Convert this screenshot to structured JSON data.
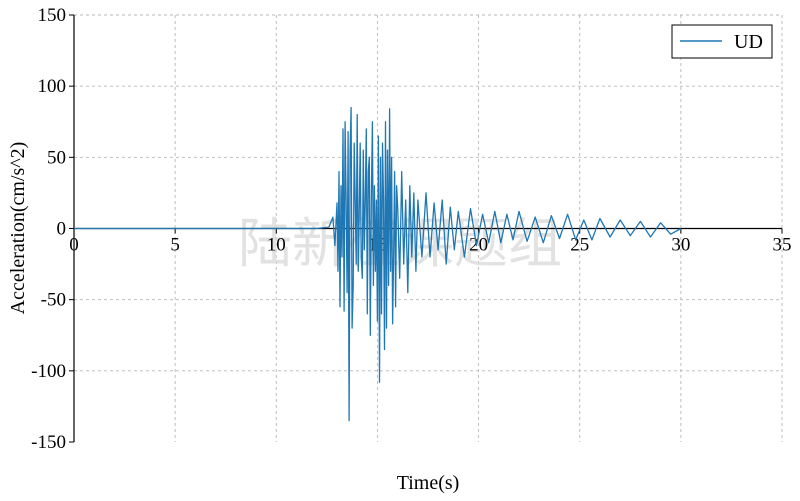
{
  "chart_data": {
    "type": "line",
    "title": "",
    "xlabel": "Time(s)",
    "ylabel": "Acceleration(cm/s^2)",
    "xlim": [
      0,
      35
    ],
    "ylim": [
      -150,
      150
    ],
    "xticks": [
      0,
      5,
      10,
      15,
      20,
      25,
      30,
      35
    ],
    "yticks": [
      150,
      100,
      50,
      0,
      -50,
      -100,
      -150
    ],
    "grid": true,
    "legend_position": "top-right",
    "watermark": "陆新征课题组",
    "series": [
      {
        "name": "UD",
        "color": "#1f77b4",
        "description": "seismic acceleration record, flat near zero until ~12.8 s, strong motion 12.8-16 s, decaying coda to 30 s",
        "x": [
          0,
          2,
          4,
          6,
          8,
          10,
          12,
          12.6,
          12.8,
          12.9,
          13.0,
          13.05,
          13.1,
          13.15,
          13.2,
          13.25,
          13.3,
          13.35,
          13.4,
          13.45,
          13.5,
          13.55,
          13.6,
          13.65,
          13.7,
          13.75,
          13.8,
          13.85,
          13.9,
          13.95,
          14.0,
          14.05,
          14.1,
          14.15,
          14.2,
          14.25,
          14.3,
          14.35,
          14.4,
          14.45,
          14.5,
          14.55,
          14.6,
          14.65,
          14.7,
          14.75,
          14.8,
          14.85,
          14.9,
          14.95,
          15.0,
          15.05,
          15.1,
          15.15,
          15.2,
          15.25,
          15.3,
          15.35,
          15.4,
          15.45,
          15.5,
          15.55,
          15.6,
          15.65,
          15.7,
          15.75,
          15.8,
          15.85,
          15.9,
          15.95,
          16.0,
          16.1,
          16.2,
          16.3,
          16.4,
          16.5,
          16.6,
          16.7,
          16.8,
          16.9,
          17.0,
          17.2,
          17.4,
          17.6,
          17.8,
          18.0,
          18.2,
          18.4,
          18.6,
          18.8,
          19.0,
          19.3,
          19.6,
          19.9,
          20.2,
          20.5,
          20.8,
          21.1,
          21.4,
          21.7,
          22.0,
          22.4,
          22.8,
          23.2,
          23.6,
          24.0,
          24.4,
          24.8,
          25.2,
          25.6,
          26.0,
          26.5,
          27.0,
          27.5,
          28.0,
          28.5,
          29.0,
          29.5,
          30.0
        ],
        "y": [
          0,
          0,
          0,
          0,
          0,
          0,
          0,
          1,
          8,
          -12,
          18,
          -30,
          40,
          -55,
          30,
          -20,
          70,
          -58,
          75,
          20,
          -45,
          68,
          -135,
          55,
          85,
          -70,
          -40,
          60,
          20,
          -25,
          80,
          -30,
          10,
          60,
          -20,
          -35,
          55,
          -15,
          20,
          70,
          -60,
          40,
          50,
          -75,
          25,
          75,
          -40,
          30,
          -30,
          20,
          -65,
          65,
          -108,
          50,
          -60,
          60,
          20,
          -85,
          75,
          -70,
          55,
          -40,
          84,
          -30,
          50,
          -67,
          -20,
          40,
          -55,
          30,
          15,
          -35,
          40,
          -25,
          20,
          -45,
          30,
          -20,
          25,
          -30,
          20,
          -20,
          25,
          -20,
          18,
          -15,
          20,
          -25,
          15,
          -15,
          12,
          -20,
          14,
          -12,
          10,
          -10,
          12,
          -10,
          10,
          -8,
          12,
          -9,
          8,
          -10,
          9,
          -7,
          10,
          -8,
          6,
          -8,
          7,
          -6,
          6,
          -5,
          5,
          -6,
          4,
          -4,
          0
        ]
      }
    ]
  }
}
